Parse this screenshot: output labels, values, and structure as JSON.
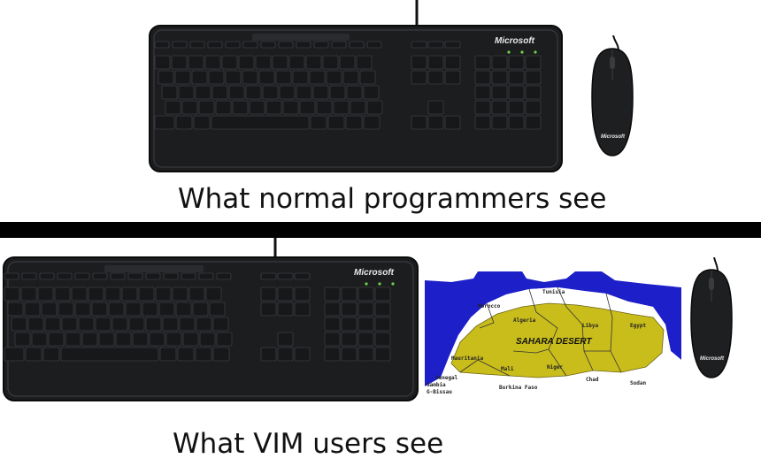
{
  "top_panel": {
    "caption": "What normal programmers see",
    "keyboard_brand": "Microsoft",
    "mouse_brand": "Microsoft"
  },
  "bottom_panel": {
    "caption": "What VIM users see",
    "keyboard_brand": "Microsoft",
    "mouse_brand": "Microsoft",
    "map": {
      "title": "SAHARA DESERT",
      "countries": [
        "Morocco",
        "Tunisia",
        "Algeria",
        "Libya",
        "Egypt",
        "Mauritania",
        "Mali",
        "Niger",
        "Chad",
        "Sudan",
        "Senegal",
        "Gambia",
        "G-Bissau",
        "Burkina Faso"
      ],
      "colors": {
        "sea": "#1d1fc8",
        "desert": "#c9bd1c",
        "land": "#ffffff"
      }
    }
  }
}
